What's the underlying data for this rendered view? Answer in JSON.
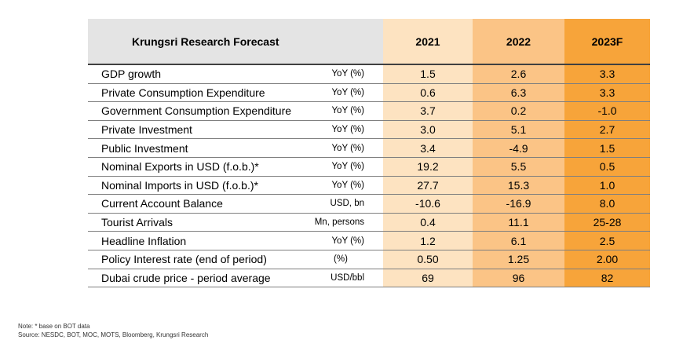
{
  "table": {
    "title": "Krungsri Research Forecast",
    "years": [
      "2021",
      "2022",
      "2023F"
    ],
    "rows": [
      {
        "indicator": "GDP growth",
        "unit": "YoY (%)",
        "values": [
          "1.5",
          "2.6",
          "3.3"
        ]
      },
      {
        "indicator": "Private Consumption Expenditure",
        "unit": "YoY (%)",
        "values": [
          "0.6",
          "6.3",
          "3.3"
        ]
      },
      {
        "indicator": "Government Consumption Expenditure",
        "unit": "YoY (%)",
        "values": [
          "3.7",
          "0.2",
          "-1.0"
        ]
      },
      {
        "indicator": "Private Investment",
        "unit": "YoY (%)",
        "values": [
          "3.0",
          "5.1",
          "2.7"
        ]
      },
      {
        "indicator": "Public Investment",
        "unit": "YoY (%)",
        "values": [
          "3.4",
          "-4.9",
          "1.5"
        ]
      },
      {
        "indicator": "Nominal Exports in USD (f.o.b.)*",
        "unit": "YoY (%)",
        "values": [
          "19.2",
          "5.5",
          "0.5"
        ]
      },
      {
        "indicator": "Nominal Imports in USD (f.o.b.)*",
        "unit": "YoY (%)",
        "values": [
          "27.7",
          "15.3",
          "1.0"
        ]
      },
      {
        "indicator": "Current Account Balance",
        "unit": "USD, bn",
        "values": [
          "-10.6",
          "-16.9",
          "8.0"
        ]
      },
      {
        "indicator": "Tourist Arrivals",
        "unit": "Mn, persons",
        "values": [
          "0.4",
          "11.1",
          "25-28"
        ]
      },
      {
        "indicator": "Headline Inflation",
        "unit": "YoY (%)",
        "values": [
          "1.2",
          "6.1",
          "2.5"
        ]
      },
      {
        "indicator": "Policy Interest rate (end of period)",
        "unit": "(%)",
        "values": [
          "0.50",
          "1.25",
          "2.00"
        ]
      },
      {
        "indicator": "Dubai crude price - period average",
        "unit": "USD/bbl",
        "values": [
          "69",
          "96",
          "82"
        ]
      }
    ]
  },
  "notes": {
    "note": "Note: * base on BOT data",
    "source": "Source: NESDC, BOT, MOC, MOTS, Bloomberg, Krungsri Research"
  },
  "colors": {
    "header_gray": "#e4e4e4",
    "col_2021": "#fde3c1",
    "col_2022": "#fbc486",
    "col_2023F": "#f7a43a"
  }
}
